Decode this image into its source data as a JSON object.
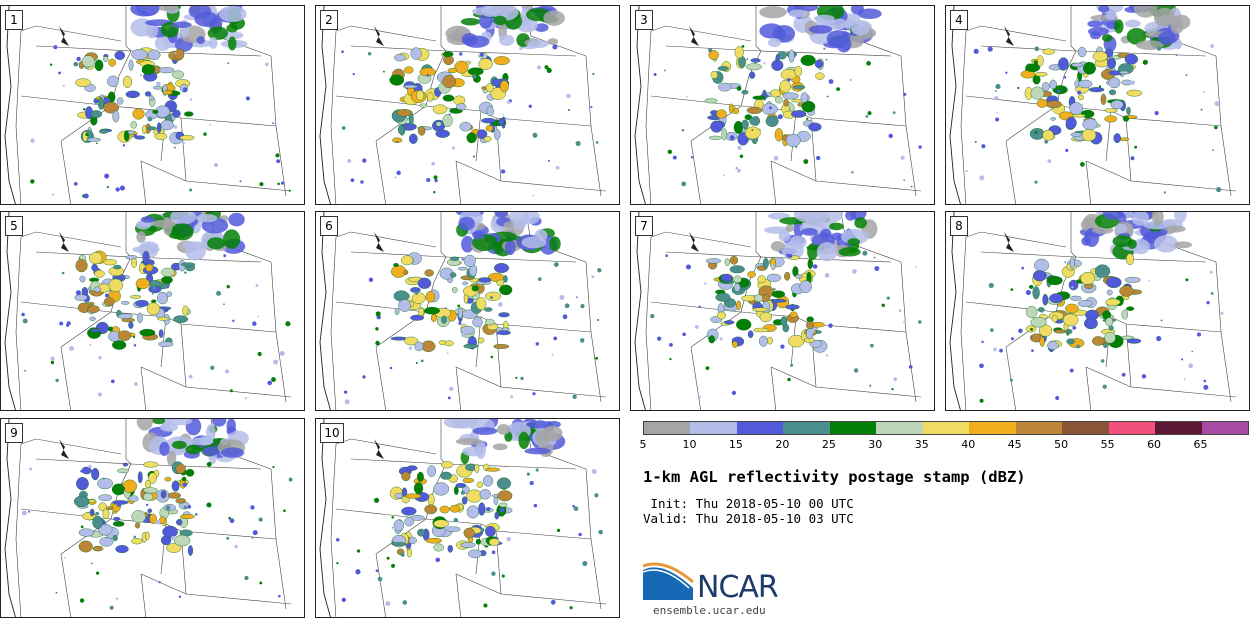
{
  "panels": [
    {
      "label": "1"
    },
    {
      "label": "2"
    },
    {
      "label": "3"
    },
    {
      "label": "4"
    },
    {
      "label": "5"
    },
    {
      "label": "6"
    },
    {
      "label": "7"
    },
    {
      "label": "8"
    },
    {
      "label": "9"
    },
    {
      "label": "10"
    }
  ],
  "colorbar": {
    "colors": [
      "#a5a5a5",
      "#b4bde9",
      "#525adb",
      "#4b8e8e",
      "#047f05",
      "#bdd7b8",
      "#f0dc62",
      "#f0ae1f",
      "#bb8637",
      "#8a5637",
      "#f2517c",
      "#5c1735",
      "#a94aa5"
    ],
    "ticks": [
      "5",
      "10",
      "15",
      "20",
      "25",
      "30",
      "35",
      "40",
      "45",
      "50",
      "55",
      "60",
      "65"
    ]
  },
  "title": "1-km AGL reflectivity postage stamp (dBZ)",
  "init_line": " Init: Thu 2018-05-10 00 UTC",
  "valid_line": "Valid: Thu 2018-05-10 03 UTC",
  "logo": {
    "text": "NCAR",
    "site": "ensemble.ucar.edu"
  }
}
